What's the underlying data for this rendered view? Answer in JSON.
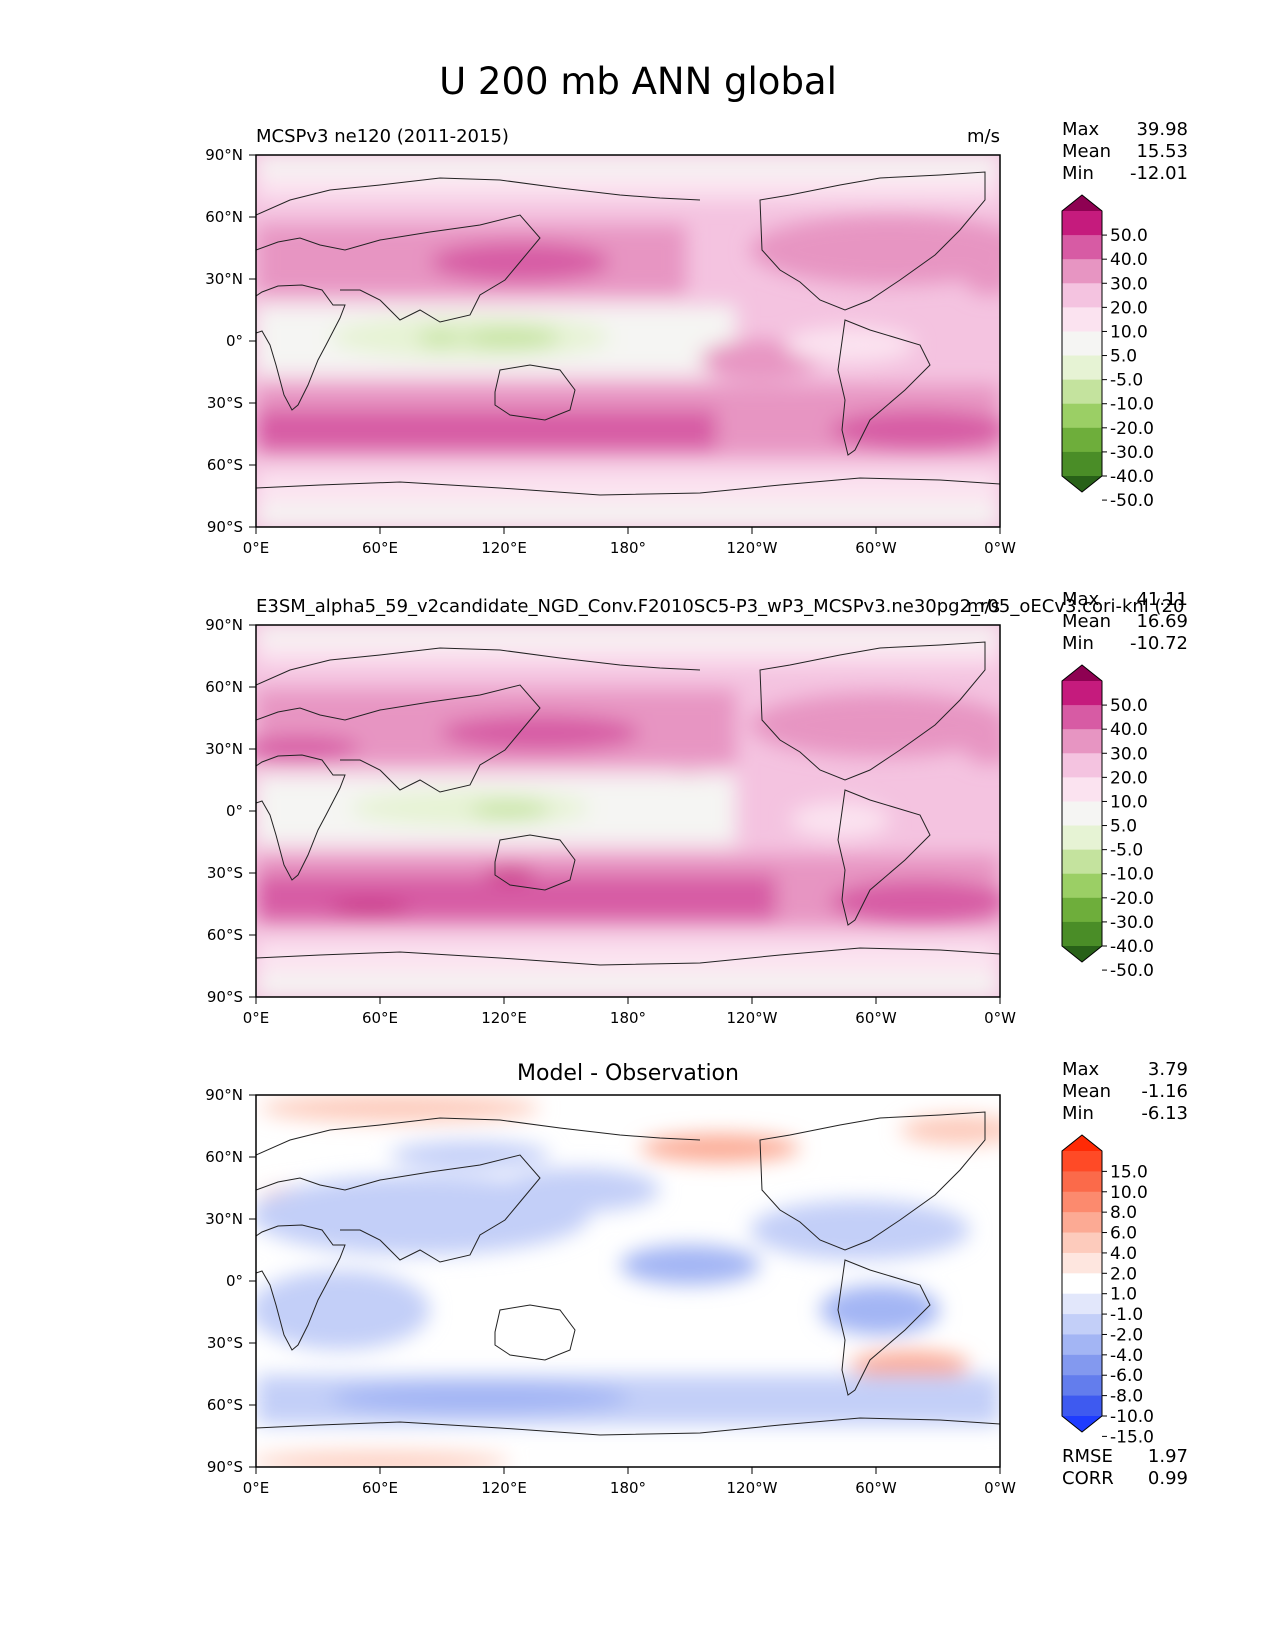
{
  "figure": {
    "title": "U 200 mb ANN global"
  },
  "chart_data": [
    {
      "type": "heatmap",
      "panel": "test",
      "title": "MCSPv3 ne120 (2011-2015)",
      "units": "m/s",
      "stats": {
        "max_label": "Max",
        "max": "39.98",
        "mean_label": "Mean",
        "mean": "15.53",
        "min_label": "Min",
        "min": "-12.01"
      },
      "x_ticks": [
        "0°E",
        "60°E",
        "120°E",
        "180°",
        "120°W",
        "60°W",
        "0°W"
      ],
      "y_ticks": [
        "90°N",
        "60°N",
        "30°N",
        "0°",
        "30°S",
        "60°S",
        "90°S"
      ],
      "xlim": [
        0,
        360
      ],
      "ylim": [
        -90,
        90
      ],
      "colorbar_levels": [
        "50.0",
        "40.0",
        "30.0",
        "20.0",
        "10.0",
        "5.0",
        "-5.0",
        "-10.0",
        "-20.0",
        "-30.0",
        "-40.0",
        "-50.0"
      ],
      "colorbar_colors": [
        "#8e0152",
        "#c51b7d",
        "#d75ba4",
        "#e795c2",
        "#f4c3e0",
        "#fbe3f0",
        "#f5f5f3",
        "#e6f3d4",
        "#c4e39e",
        "#9bcf65",
        "#6eae3b",
        "#4a8d27",
        "#286118"
      ]
    },
    {
      "type": "heatmap",
      "panel": "reference",
      "title": "E3SM_alpha5_59_v2candidate_NGD_Conv.F2010SC5-P3_wP3_MCSPv3.ne30pg2_r05_oECv3.cori-knl (20",
      "units": "m/s",
      "stats": {
        "max_label": "Max",
        "max": "41.11",
        "mean_label": "Mean",
        "mean": "16.69",
        "min_label": "Min",
        "min": "-10.72"
      },
      "x_ticks": [
        "0°E",
        "60°E",
        "120°E",
        "180°",
        "120°W",
        "60°W",
        "0°W"
      ],
      "y_ticks": [
        "90°N",
        "60°N",
        "30°N",
        "0°",
        "30°S",
        "60°S",
        "90°S"
      ],
      "xlim": [
        0,
        360
      ],
      "ylim": [
        -90,
        90
      ],
      "colorbar_levels": [
        "50.0",
        "40.0",
        "30.0",
        "20.0",
        "10.0",
        "5.0",
        "-5.0",
        "-10.0",
        "-20.0",
        "-30.0",
        "-40.0",
        "-50.0"
      ],
      "colorbar_colors": [
        "#8e0152",
        "#c51b7d",
        "#d75ba4",
        "#e795c2",
        "#f4c3e0",
        "#fbe3f0",
        "#f5f5f3",
        "#e6f3d4",
        "#c4e39e",
        "#9bcf65",
        "#6eae3b",
        "#4a8d27",
        "#286118"
      ]
    },
    {
      "type": "heatmap",
      "panel": "difference",
      "title": "Model - Observation",
      "units": "",
      "stats": {
        "max_label": "Max",
        "max": "3.79",
        "mean_label": "Mean",
        "mean": "-1.16",
        "min_label": "Min",
        "min": "-6.13"
      },
      "metrics": {
        "rmse_label": "RMSE",
        "rmse": "1.97",
        "corr_label": "CORR",
        "corr": "0.99"
      },
      "x_ticks": [
        "0°E",
        "60°E",
        "120°E",
        "180°",
        "120°W",
        "60°W",
        "0°W"
      ],
      "y_ticks": [
        "90°N",
        "60°N",
        "30°N",
        "0°",
        "30°S",
        "60°S",
        "90°S"
      ],
      "xlim": [
        0,
        360
      ],
      "ylim": [
        -90,
        90
      ],
      "colorbar_levels": [
        "15.0",
        "10.0",
        "8.0",
        "6.0",
        "4.0",
        "2.0",
        "1.0",
        "-1.0",
        "-2.0",
        "-4.0",
        "-6.0",
        "-8.0",
        "-10.0",
        "-15.0"
      ],
      "colorbar_colors": [
        "#ff2a05",
        "#ff4a26",
        "#fb6a4a",
        "#fc8a6e",
        "#fcaa94",
        "#fdcbbc",
        "#fee6df",
        "#ffffff",
        "#e2e7fb",
        "#c3cff8",
        "#a3b5f4",
        "#8399ef",
        "#637ded",
        "#3e5af0",
        "#1e3cff"
      ]
    }
  ]
}
